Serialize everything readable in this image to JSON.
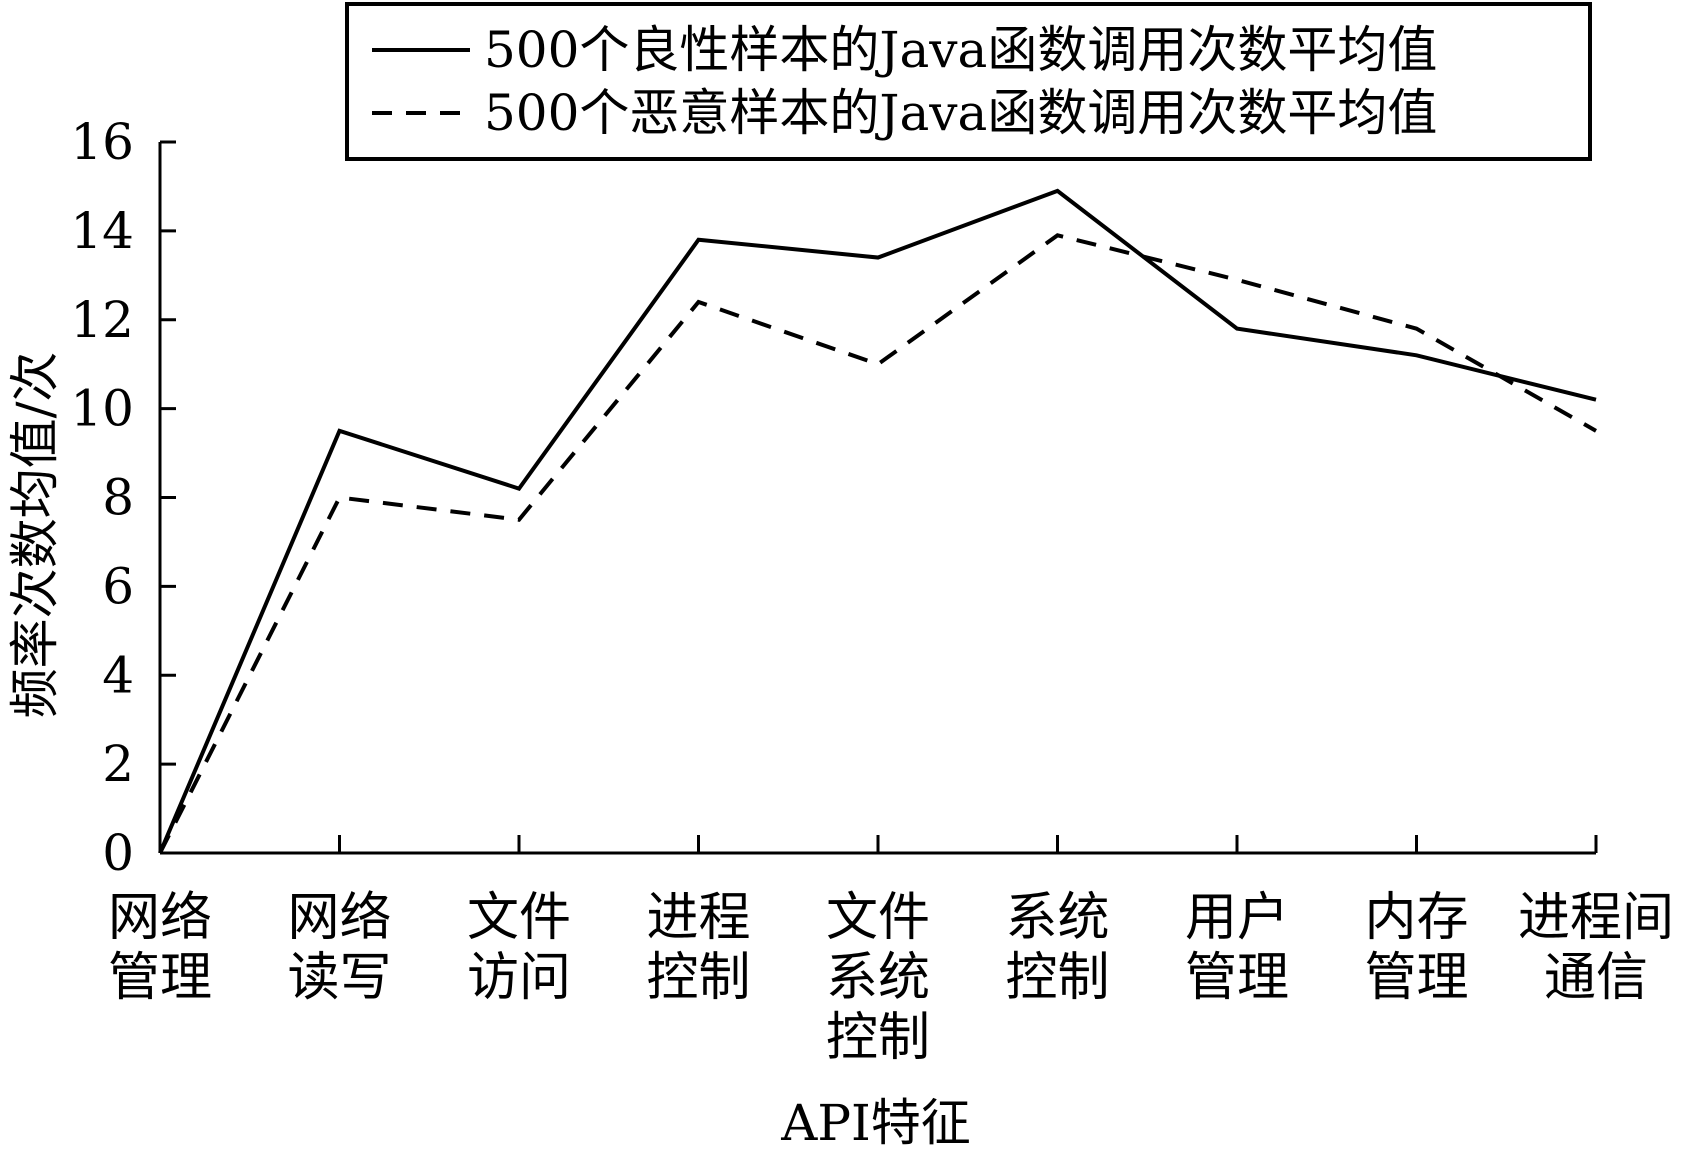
{
  "chart_data": {
    "type": "line",
    "categories": [
      [
        "网络",
        "管理"
      ],
      [
        "网络",
        "读写"
      ],
      [
        "文件",
        "访问"
      ],
      [
        "进程",
        "控制"
      ],
      [
        "文件",
        "系统",
        "控制"
      ],
      [
        "系统",
        "控制"
      ],
      [
        "用户",
        "管理"
      ],
      [
        "内存",
        "管理"
      ],
      [
        "进程间",
        "通信"
      ]
    ],
    "series": [
      {
        "name": "500个良性样本的Java函数调用次数平均值",
        "style": "solid",
        "values": [
          0,
          9.5,
          8.2,
          13.8,
          13.4,
          14.9,
          11.8,
          11.2,
          10.2
        ]
      },
      {
        "name": "500个恶意样本的Java函数调用次数平均值",
        "style": "dashed",
        "values": [
          0,
          8.0,
          7.5,
          12.4,
          11.0,
          13.9,
          12.9,
          11.8,
          9.5
        ]
      }
    ],
    "xlabel": "API特征",
    "ylabel": "频率次数均值/次",
    "ylim": [
      0,
      16
    ],
    "yticks": [
      0,
      2,
      4,
      6,
      8,
      10,
      12,
      14,
      16
    ],
    "grid": false,
    "legend": "top-right",
    "line_color": "#000000"
  }
}
